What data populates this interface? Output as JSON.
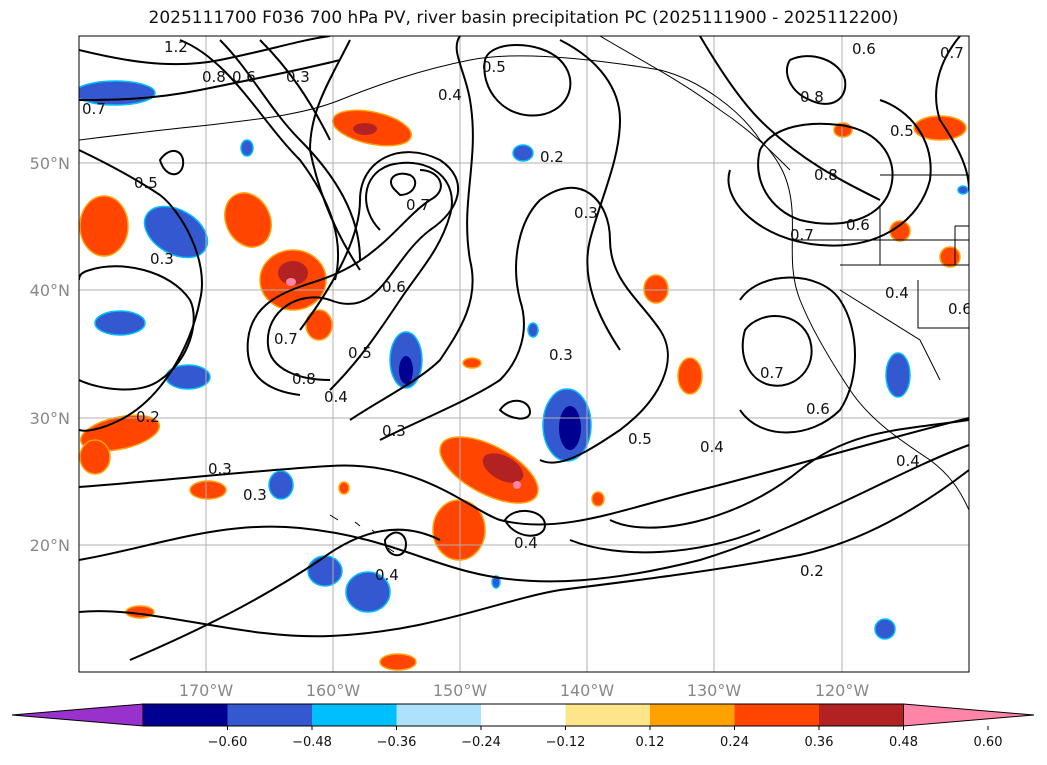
{
  "title": "2025111700 F036 700 hPa PV, river basin precipitation PC (2025111900 - 2025112200)",
  "latitude_labels": [
    "50°N",
    "40°N",
    "30°N",
    "20°N"
  ],
  "longitude_labels": [
    "170°W",
    "160°W",
    "150°W",
    "140°W",
    "130°W",
    "120°W"
  ],
  "contour_labels": [
    "1.2",
    "0.8",
    "0.6",
    "0.3",
    "0.5",
    "0.4",
    "0.7",
    "0.7",
    "0.5",
    "0.3",
    "0.7",
    "0.2",
    "0.3",
    "0.6",
    "0.7",
    "0.8",
    "0.4",
    "0.5",
    "0.3",
    "0.3",
    "0.3",
    "0.2",
    "0.3",
    "0.4",
    "0.5",
    "0.4",
    "0.2",
    "0.4",
    "0.6",
    "0.8",
    "0.8",
    "0.5",
    "0.6",
    "0.7",
    "0.6",
    "0.4",
    "0.7",
    "0.6",
    "0.4"
  ],
  "colorbar": {
    "colors": [
      "#9932cc",
      "#000090",
      "#3358cf",
      "#00bfff",
      "#aee2fb",
      "#ffffff",
      "#fde68a",
      "#ffa200",
      "#ff4500",
      "#b22222",
      "#ff85a8"
    ],
    "tick_labels": [
      "−0.60",
      "−0.48",
      "−0.36",
      "−0.24",
      "−0.12",
      "0.12",
      "0.24",
      "0.36",
      "0.48",
      "0.60"
    ],
    "extend": "both"
  }
}
